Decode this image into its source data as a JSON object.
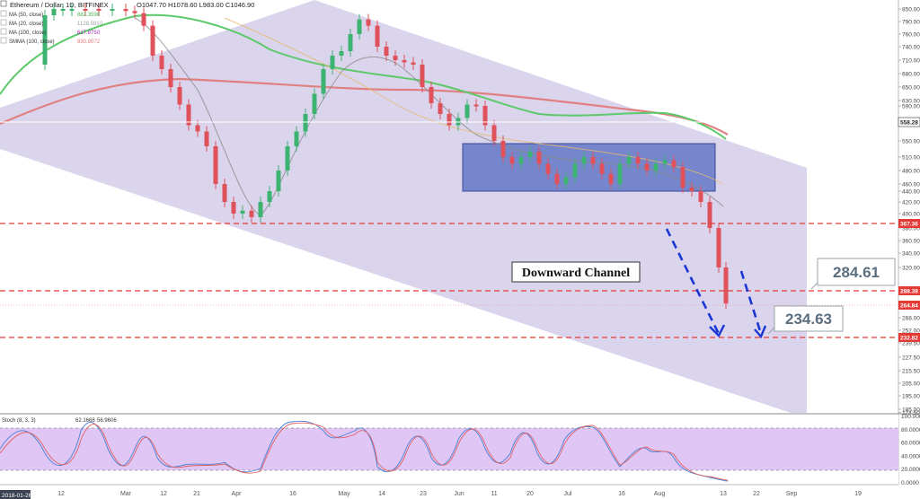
{
  "header": {
    "title": "Ethereum / Dollar, 1D, BITFINEX",
    "ohlc": "O1047.70  H1078.60  L983.00  C1046.90"
  },
  "indicators": [
    {
      "label": "MA (50, close)",
      "value": "882.3598",
      "color": "#4caf50"
    },
    {
      "label": "MA (20, close)",
      "value": "1128.5910",
      "color": "#9aa0a6"
    },
    {
      "label": "MA (100, close)",
      "value": "617.8750",
      "color": "#9c27b0"
    },
    {
      "label": "SMMA (100, close)",
      "value": "830.9072",
      "color": "#e57373"
    }
  ],
  "stoch": {
    "label": "Stoch (8, 3, 3)",
    "k": "62.1668",
    "d": "56.9606"
  },
  "chart_data": {
    "type": "candlestick",
    "y_axis_ticks": [
      "850.00",
      "790.00",
      "760.00",
      "740.00",
      "710.00",
      "680.00",
      "650.00",
      "630.00",
      "590.00",
      "570.00",
      "550.00",
      "510.00",
      "480.00",
      "460.00",
      "440.00",
      "420.00",
      "400.00",
      "380.00",
      "360.00",
      "340.00",
      "320.00",
      "300.00",
      "286.00",
      "268.00",
      "252.00",
      "239.50",
      "227.50",
      "215.50",
      "205.00",
      "195.00",
      "185.00",
      "174.50"
    ],
    "x_axis_ticks": [
      "12",
      "Mar",
      "12",
      "21",
      "Apr",
      "16",
      "May",
      "14",
      "23",
      "Jun",
      "11",
      "20",
      "Jul",
      "16",
      "Aug",
      "13",
      "22",
      "Sep",
      "19"
    ],
    "price_labels": [
      {
        "text": "558.28",
        "value": 558.28,
        "bg": "#ffffff"
      },
      {
        "text": "367.36",
        "value": 367.36,
        "bg": "#e53935"
      },
      {
        "text": "288.38",
        "value": 288.38,
        "bg": "#e53935"
      },
      {
        "text": "264.84",
        "value": 264.84,
        "bg": "#e53935"
      },
      {
        "text": "232.82",
        "value": 232.82,
        "bg": "#e53935"
      }
    ],
    "horizontal_levels": [
      367.36,
      288.38,
      232.82
    ],
    "callouts": [
      "284.61",
      "234.63"
    ],
    "annotation": "Downward Channel",
    "stoch_ticks": [
      "100.0000",
      "80.0000",
      "60.0000",
      "40.0000",
      "20.0000",
      "0.0000"
    ],
    "stoch_band": [
      20,
      80
    ],
    "date_label": "2018-01-26"
  }
}
